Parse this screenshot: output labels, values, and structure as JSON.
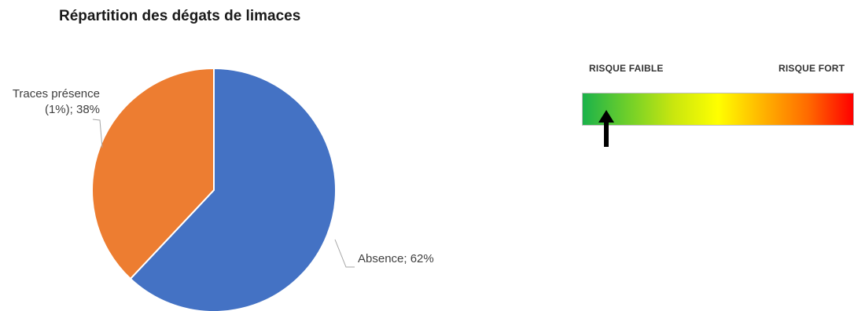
{
  "chart_data": {
    "type": "pie",
    "title": "Répartition des dégats de limaces",
    "slices": [
      {
        "label": "Absence",
        "value": 62,
        "display": "Absence; 62%",
        "color": "#4472C4"
      },
      {
        "label": "Traces présence (1%)",
        "value": 38,
        "display_line1": "Traces présence",
        "display_line2": "(1%); 38%",
        "color": "#ED7D31"
      }
    ],
    "legend": "none"
  },
  "risk_scale": {
    "low_label": "RISQUE FAIBLE",
    "high_label": "RISQUE FORT",
    "gradient_colors": [
      "#1bb24a",
      "#6fcf2a",
      "#c8e60f",
      "#ffff00",
      "#ffb300",
      "#ff6a00",
      "#ff0000"
    ],
    "indicator_position": 0.09
  }
}
